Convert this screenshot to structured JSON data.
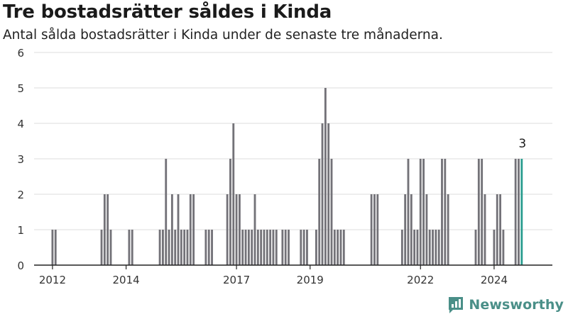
{
  "header": {
    "title": "Tre bostadsrätter såldes i Kinda",
    "subtitle": "Antal sålda bostadsrätter i Kinda under de senaste tre månaderna."
  },
  "brand": {
    "name": "Newsworthy",
    "icon": "newsworthy-logo-icon"
  },
  "colors": {
    "bar": "#737278",
    "highlight": "#2a9d8f",
    "grid": "#dedede",
    "axis": "#222222"
  },
  "chart_data": {
    "type": "bar",
    "xlabel": "",
    "ylabel": "",
    "ylim": [
      0,
      6
    ],
    "y_ticks": [
      0,
      1,
      2,
      3,
      4,
      5,
      6
    ],
    "grid": true,
    "x_range": [
      "2011-07",
      "2025-08"
    ],
    "x_tick_labels": [
      {
        "label": "2012",
        "date": "2012-01"
      },
      {
        "label": "2014",
        "date": "2014-01"
      },
      {
        "label": "2017",
        "date": "2017-01"
      },
      {
        "label": "2019",
        "date": "2019-01"
      },
      {
        "label": "2022",
        "date": "2022-01"
      },
      {
        "label": "2024",
        "date": "2024-01"
      }
    ],
    "series": [
      {
        "values": [
          {
            "x": "2012-01",
            "y": 1
          },
          {
            "x": "2012-02",
            "y": 1
          },
          {
            "x": "2013-05",
            "y": 1
          },
          {
            "x": "2013-06",
            "y": 2
          },
          {
            "x": "2013-07",
            "y": 2
          },
          {
            "x": "2013-08",
            "y": 1
          },
          {
            "x": "2014-02",
            "y": 1
          },
          {
            "x": "2014-03",
            "y": 1
          },
          {
            "x": "2014-12",
            "y": 1
          },
          {
            "x": "2015-01",
            "y": 1
          },
          {
            "x": "2015-02",
            "y": 3
          },
          {
            "x": "2015-03",
            "y": 1
          },
          {
            "x": "2015-04",
            "y": 2
          },
          {
            "x": "2015-05",
            "y": 1
          },
          {
            "x": "2015-06",
            "y": 2
          },
          {
            "x": "2015-07",
            "y": 1
          },
          {
            "x": "2015-08",
            "y": 1
          },
          {
            "x": "2015-09",
            "y": 1
          },
          {
            "x": "2015-10",
            "y": 2
          },
          {
            "x": "2015-11",
            "y": 2
          },
          {
            "x": "2016-03",
            "y": 1
          },
          {
            "x": "2016-04",
            "y": 1
          },
          {
            "x": "2016-05",
            "y": 1
          },
          {
            "x": "2016-10",
            "y": 2
          },
          {
            "x": "2016-11",
            "y": 3
          },
          {
            "x": "2016-12",
            "y": 4
          },
          {
            "x": "2017-01",
            "y": 2
          },
          {
            "x": "2017-02",
            "y": 2
          },
          {
            "x": "2017-03",
            "y": 1
          },
          {
            "x": "2017-04",
            "y": 1
          },
          {
            "x": "2017-05",
            "y": 1
          },
          {
            "x": "2017-06",
            "y": 1
          },
          {
            "x": "2017-07",
            "y": 2
          },
          {
            "x": "2017-08",
            "y": 1
          },
          {
            "x": "2017-09",
            "y": 1
          },
          {
            "x": "2017-10",
            "y": 1
          },
          {
            "x": "2017-11",
            "y": 1
          },
          {
            "x": "2017-12",
            "y": 1
          },
          {
            "x": "2018-01",
            "y": 1
          },
          {
            "x": "2018-02",
            "y": 1
          },
          {
            "x": "2018-04",
            "y": 1
          },
          {
            "x": "2018-05",
            "y": 1
          },
          {
            "x": "2018-06",
            "y": 1
          },
          {
            "x": "2018-10",
            "y": 1
          },
          {
            "x": "2018-11",
            "y": 1
          },
          {
            "x": "2018-12",
            "y": 1
          },
          {
            "x": "2019-03",
            "y": 1
          },
          {
            "x": "2019-04",
            "y": 3
          },
          {
            "x": "2019-05",
            "y": 4
          },
          {
            "x": "2019-06",
            "y": 5
          },
          {
            "x": "2019-07",
            "y": 4
          },
          {
            "x": "2019-08",
            "y": 3
          },
          {
            "x": "2019-09",
            "y": 1
          },
          {
            "x": "2019-10",
            "y": 1
          },
          {
            "x": "2019-11",
            "y": 1
          },
          {
            "x": "2019-12",
            "y": 1
          },
          {
            "x": "2020-09",
            "y": 2
          },
          {
            "x": "2020-10",
            "y": 2
          },
          {
            "x": "2020-11",
            "y": 2
          },
          {
            "x": "2021-07",
            "y": 1
          },
          {
            "x": "2021-08",
            "y": 2
          },
          {
            "x": "2021-09",
            "y": 3
          },
          {
            "x": "2021-10",
            "y": 2
          },
          {
            "x": "2021-11",
            "y": 1
          },
          {
            "x": "2021-12",
            "y": 1
          },
          {
            "x": "2022-01",
            "y": 3
          },
          {
            "x": "2022-02",
            "y": 3
          },
          {
            "x": "2022-03",
            "y": 2
          },
          {
            "x": "2022-04",
            "y": 1
          },
          {
            "x": "2022-05",
            "y": 1
          },
          {
            "x": "2022-06",
            "y": 1
          },
          {
            "x": "2022-07",
            "y": 1
          },
          {
            "x": "2022-08",
            "y": 3
          },
          {
            "x": "2022-09",
            "y": 3
          },
          {
            "x": "2022-10",
            "y": 2
          },
          {
            "x": "2023-07",
            "y": 1
          },
          {
            "x": "2023-08",
            "y": 3
          },
          {
            "x": "2023-09",
            "y": 3
          },
          {
            "x": "2023-10",
            "y": 2
          },
          {
            "x": "2024-01",
            "y": 1
          },
          {
            "x": "2024-02",
            "y": 2
          },
          {
            "x": "2024-03",
            "y": 2
          },
          {
            "x": "2024-04",
            "y": 1
          },
          {
            "x": "2024-08",
            "y": 3
          },
          {
            "x": "2024-09",
            "y": 3
          },
          {
            "x": "2024-10",
            "y": 3
          }
        ]
      }
    ],
    "highlight": {
      "x": "2024-10",
      "y": 3,
      "label": "3"
    }
  }
}
